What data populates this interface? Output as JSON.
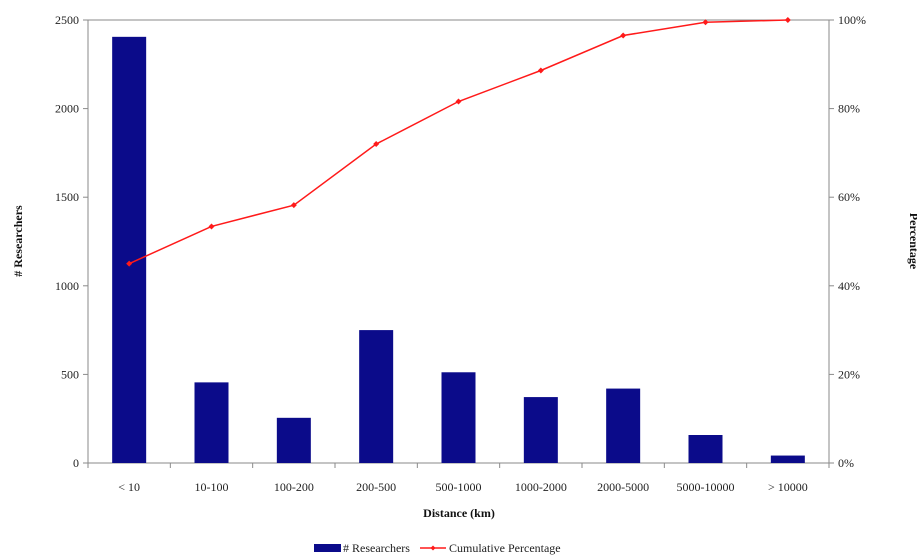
{
  "chart_data": {
    "type": "bar",
    "categories": [
      "< 10",
      "10-100",
      "100-200",
      "200-500",
      "500-1000",
      "1000-2000",
      "2000-5000",
      "5000-10000",
      "> 10000"
    ],
    "series": [
      {
        "name": "# Researchers",
        "type": "bar",
        "axis": "left",
        "color": "#0b0b8a",
        "values": [
          2405,
          455,
          255,
          750,
          512,
          372,
          420,
          158,
          42
        ]
      },
      {
        "name": "Cumulative Percentage",
        "type": "line",
        "axis": "right",
        "color": "#ff1a1a",
        "values": [
          0.45,
          0.534,
          0.582,
          0.72,
          0.816,
          0.886,
          0.965,
          0.995,
          1.0
        ]
      }
    ],
    "xlabel": "Distance (km)",
    "ylabel": "# Researchers",
    "y2label": "Percentage",
    "ylim": [
      0,
      2500
    ],
    "y2lim": [
      0,
      1
    ],
    "yticks": [
      "0",
      "500",
      "1000",
      "1500",
      "2000",
      "2500"
    ],
    "y2ticks": [
      "0%",
      "20%",
      "40%",
      "60%",
      "80%",
      "100%"
    ],
    "grid": false,
    "legend_position": "bottom"
  }
}
